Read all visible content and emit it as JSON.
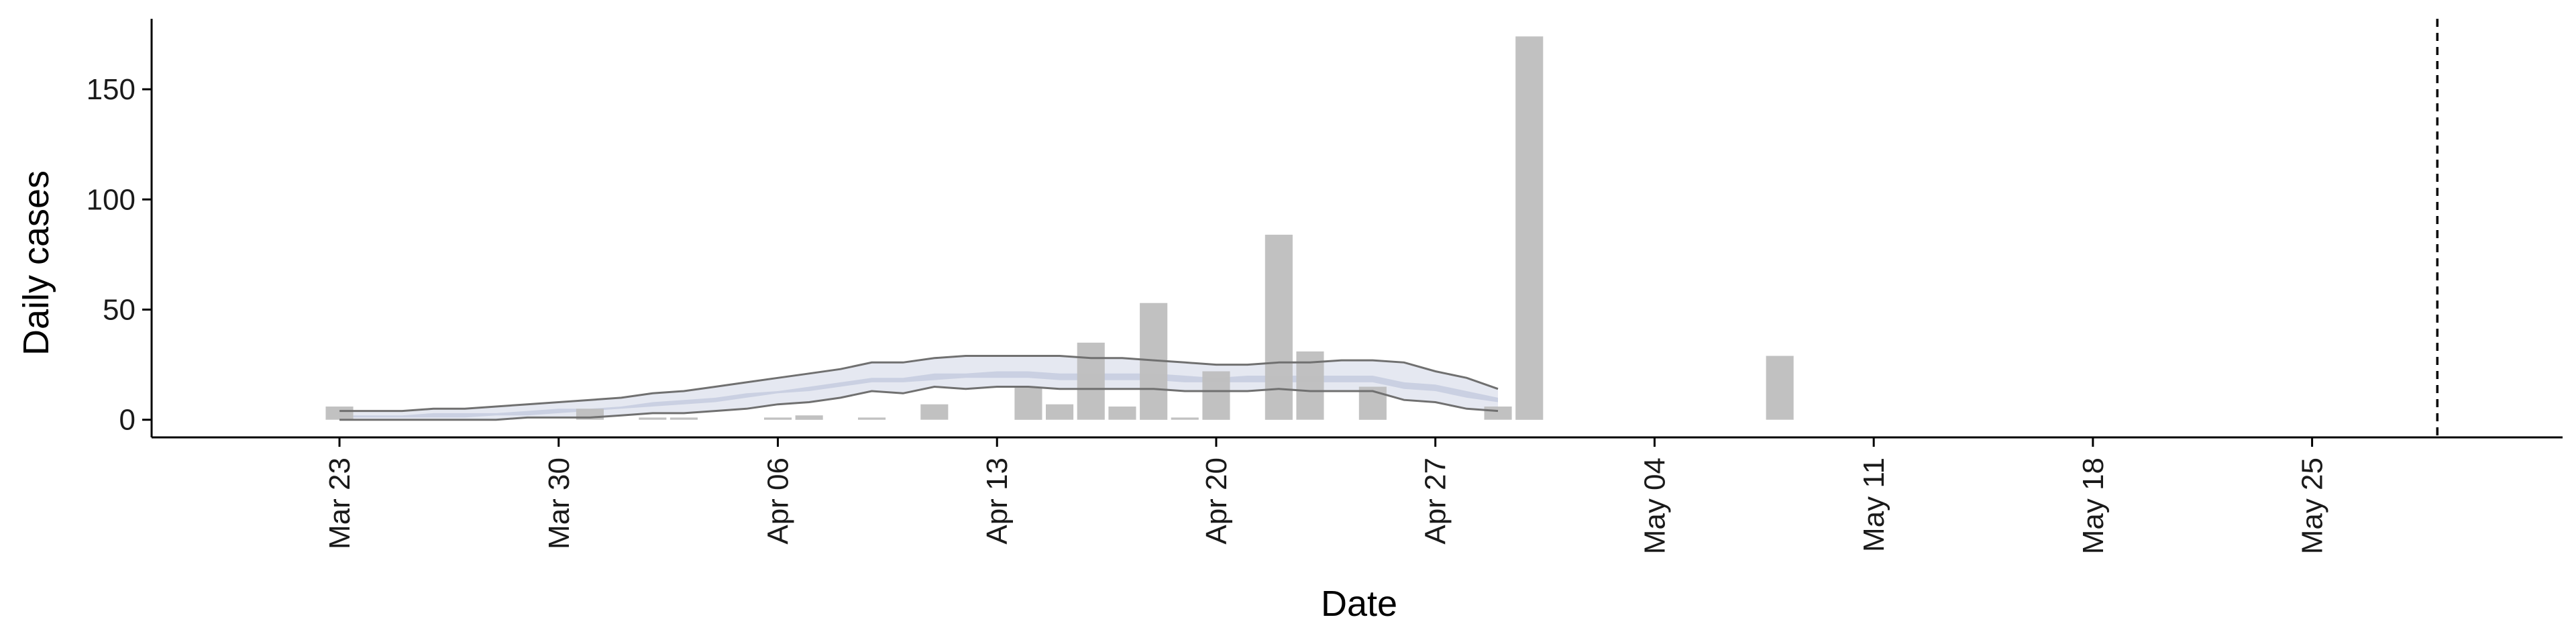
{
  "chart_data": {
    "type": "bar",
    "xlabel": "Date",
    "ylabel": "Daily cases",
    "ylim": [
      -8,
      182
    ],
    "yticks": [
      0,
      50,
      100,
      150
    ],
    "x_range": [
      "2020-03-17",
      "2020-06-02"
    ],
    "x_ticks": [
      {
        "date": "2020-03-23",
        "label": "Mar 23"
      },
      {
        "date": "2020-03-30",
        "label": "Mar 30"
      },
      {
        "date": "2020-04-06",
        "label": "Apr 06"
      },
      {
        "date": "2020-04-13",
        "label": "Apr 13"
      },
      {
        "date": "2020-04-20",
        "label": "Apr 20"
      },
      {
        "date": "2020-04-27",
        "label": "Apr 27"
      },
      {
        "date": "2020-05-04",
        "label": "May 04"
      },
      {
        "date": "2020-05-11",
        "label": "May 11"
      },
      {
        "date": "2020-05-18",
        "label": "May 18"
      },
      {
        "date": "2020-05-25",
        "label": "May 25"
      }
    ],
    "reference_line_date": "2020-05-29",
    "bars": [
      {
        "date": "2020-03-23",
        "value": 6
      },
      {
        "date": "2020-03-31",
        "value": 5
      },
      {
        "date": "2020-04-02",
        "value": 1
      },
      {
        "date": "2020-04-03",
        "value": 1
      },
      {
        "date": "2020-04-06",
        "value": 1
      },
      {
        "date": "2020-04-07",
        "value": 2
      },
      {
        "date": "2020-04-09",
        "value": 1
      },
      {
        "date": "2020-04-11",
        "value": 7
      },
      {
        "date": "2020-04-14",
        "value": 15
      },
      {
        "date": "2020-04-15",
        "value": 7
      },
      {
        "date": "2020-04-16",
        "value": 35
      },
      {
        "date": "2020-04-17",
        "value": 6
      },
      {
        "date": "2020-04-18",
        "value": 53
      },
      {
        "date": "2020-04-19",
        "value": 1
      },
      {
        "date": "2020-04-20",
        "value": 22
      },
      {
        "date": "2020-04-22",
        "value": 84
      },
      {
        "date": "2020-04-23",
        "value": 31
      },
      {
        "date": "2020-04-25",
        "value": 15
      },
      {
        "date": "2020-04-29",
        "value": 6
      },
      {
        "date": "2020-04-30",
        "value": 174
      },
      {
        "date": "2020-05-08",
        "value": 29
      }
    ],
    "band_dates": [
      "2020-03-23",
      "2020-03-24",
      "2020-03-25",
      "2020-03-26",
      "2020-03-27",
      "2020-03-28",
      "2020-03-29",
      "2020-03-30",
      "2020-03-31",
      "2020-04-01",
      "2020-04-02",
      "2020-04-03",
      "2020-04-04",
      "2020-04-05",
      "2020-04-06",
      "2020-04-07",
      "2020-04-08",
      "2020-04-09",
      "2020-04-10",
      "2020-04-11",
      "2020-04-12",
      "2020-04-13",
      "2020-04-14",
      "2020-04-15",
      "2020-04-16",
      "2020-04-17",
      "2020-04-18",
      "2020-04-19",
      "2020-04-20",
      "2020-04-21",
      "2020-04-22",
      "2020-04-23",
      "2020-04-24",
      "2020-04-25",
      "2020-04-26",
      "2020-04-27",
      "2020-04-28",
      "2020-04-29"
    ],
    "outer_lower": [
      0,
      0,
      0,
      0,
      0,
      0,
      1,
      1,
      1,
      2,
      3,
      3,
      4,
      5,
      7,
      8,
      10,
      13,
      12,
      15,
      14,
      15,
      15,
      14,
      14,
      14,
      14,
      13,
      13,
      13,
      14,
      13,
      13,
      13,
      9,
      8,
      5,
      4
    ],
    "outer_upper": [
      4,
      4,
      4,
      5,
      5,
      6,
      7,
      8,
      9,
      10,
      12,
      13,
      15,
      17,
      19,
      21,
      23,
      26,
      26,
      28,
      29,
      29,
      29,
      29,
      28,
      28,
      27,
      26,
      25,
      25,
      26,
      26,
      27,
      27,
      26,
      22,
      19,
      14
    ],
    "inner_lower": [
      1,
      1,
      1,
      1,
      1,
      2,
      2,
      3,
      4,
      5,
      6,
      7,
      8,
      10,
      12,
      13,
      15,
      17,
      17,
      18,
      19,
      19,
      19,
      18,
      18,
      18,
      18,
      17,
      17,
      17,
      17,
      17,
      17,
      17,
      14,
      13,
      10,
      8
    ],
    "inner_upper": [
      2,
      2,
      2,
      3,
      3,
      3,
      4,
      5,
      5,
      6,
      8,
      9,
      10,
      12,
      13,
      15,
      17,
      19,
      19,
      21,
      21,
      22,
      22,
      21,
      21,
      21,
      21,
      20,
      19,
      20,
      20,
      20,
      20,
      20,
      17,
      16,
      13,
      10
    ],
    "colors": {
      "bar": "#bebebe",
      "band_outer": "#e2e6ef",
      "band_inner": "#c8cfe0",
      "band_line": "#707070",
      "axis": "#000000",
      "reference_line": "#000000"
    }
  }
}
